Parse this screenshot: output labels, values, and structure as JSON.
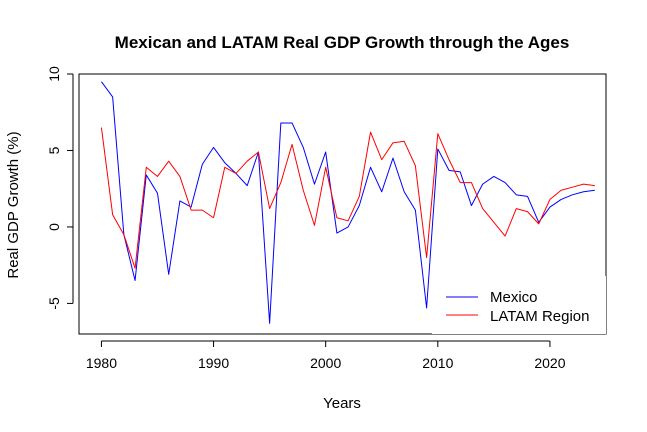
{
  "chart_data": {
    "type": "line",
    "title": "Mexican and LATAM Real GDP Growth through the Ages",
    "xlabel": "Years",
    "ylabel": "Real GDP Growth (%)",
    "xlim": [
      1978,
      2025
    ],
    "ylim": [
      -7,
      10
    ],
    "x_ticks": [
      1980,
      1990,
      2000,
      2010,
      2020
    ],
    "y_ticks": [
      -5,
      0,
      5,
      10
    ],
    "legend_position": "bottom-right",
    "grid": false,
    "x": [
      1980,
      1981,
      1982,
      1983,
      1984,
      1985,
      1986,
      1987,
      1988,
      1989,
      1990,
      1991,
      1992,
      1993,
      1994,
      1995,
      1996,
      1997,
      1998,
      1999,
      2000,
      2001,
      2002,
      2003,
      2004,
      2005,
      2006,
      2007,
      2008,
      2009,
      2010,
      2011,
      2012,
      2013,
      2014,
      2015,
      2016,
      2017,
      2018,
      2019,
      2020,
      2021,
      2022,
      2023,
      2024
    ],
    "series": [
      {
        "name": "Mexico",
        "color": "#0000ff",
        "values": [
          9.5,
          8.5,
          -0.5,
          -3.5,
          3.4,
          2.2,
          -3.1,
          1.7,
          1.3,
          4.1,
          5.2,
          4.2,
          3.5,
          2.7,
          4.9,
          -6.3,
          6.8,
          6.8,
          5.2,
          2.8,
          4.9,
          -0.4,
          0.0,
          1.4,
          3.9,
          2.3,
          4.5,
          2.3,
          1.1,
          -5.3,
          5.1,
          3.7,
          3.6,
          1.4,
          2.8,
          3.3,
          2.9,
          2.1,
          2.0,
          0.3,
          1.3,
          1.8,
          2.1,
          2.3,
          2.4
        ]
      },
      {
        "name": "LATAM Region",
        "color": "#ff0000",
        "values": [
          6.5,
          0.8,
          -0.5,
          -2.7,
          3.9,
          3.3,
          4.3,
          3.3,
          1.1,
          1.1,
          0.6,
          3.9,
          3.5,
          4.3,
          4.9,
          1.2,
          2.9,
          5.4,
          2.4,
          0.1,
          3.9,
          0.6,
          0.4,
          2.0,
          6.2,
          4.4,
          5.5,
          5.6,
          4.0,
          -2.0,
          6.1,
          4.4,
          2.9,
          2.9,
          1.2,
          0.3,
          -0.6,
          1.2,
          1.0,
          0.2,
          1.8,
          2.4,
          2.6,
          2.8,
          2.7
        ]
      }
    ]
  }
}
